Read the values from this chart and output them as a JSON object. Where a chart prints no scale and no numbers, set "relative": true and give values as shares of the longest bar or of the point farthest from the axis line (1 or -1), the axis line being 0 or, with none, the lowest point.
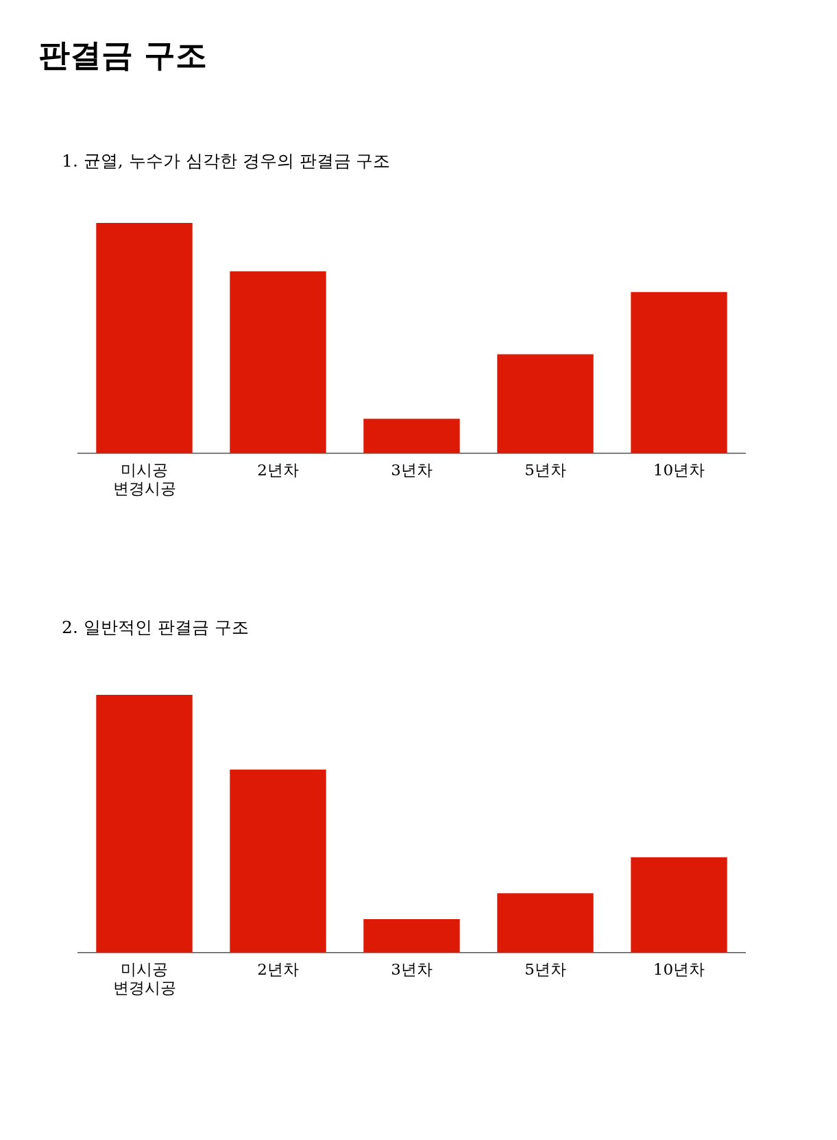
{
  "chart_data": [
    {
      "type": "bar",
      "title": "판결금 구조",
      "subtitle": "1. 균열, 누수가 심각한 경우의 판결금 구조",
      "categories": [
        "미시공 변경시공",
        "2년차",
        "3년차",
        "5년차",
        "10년차"
      ],
      "values": [
        1,
        0.79,
        0.15,
        0.43,
        0.7
      ],
      "color": "#dd1a06",
      "relative": true
    },
    {
      "type": "bar",
      "title": "2. 일반적인 판결금 구조",
      "categories": [
        "미시공 변경시공",
        "2년차",
        "3년차",
        "5년차",
        "10년차"
      ],
      "values": [
        1,
        0.71,
        0.13,
        0.23,
        0.37
      ],
      "color": "#dd1a06",
      "relative": true
    }
  ]
}
